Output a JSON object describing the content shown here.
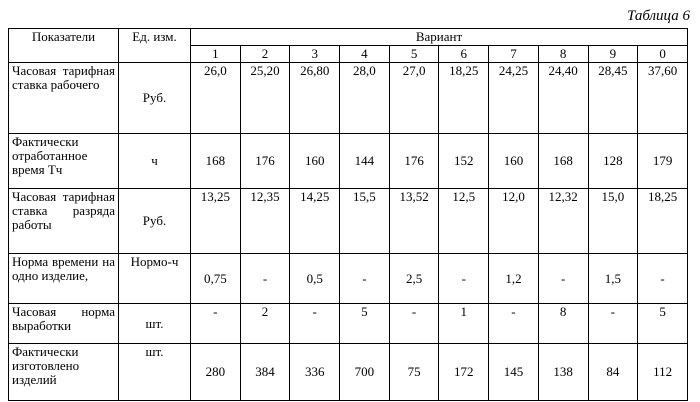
{
  "caption": "Таблица 6",
  "table": {
    "header": {
      "indicator": "Показатели",
      "unit": "Ед. изм.",
      "variant": "Вариант",
      "variants": [
        "1",
        "2",
        "3",
        "4",
        "5",
        "6",
        "7",
        "8",
        "9",
        "0"
      ]
    },
    "rows": [
      {
        "label": "Часовая тарифная ставка рабочего",
        "unit": "Руб.",
        "values": [
          "26,0",
          "25,20",
          "26,80",
          "28,0",
          "27,0",
          "18,25",
          "24,25",
          "24,40",
          "28,45",
          "37,60"
        ]
      },
      {
        "label": "Фактически отработанное время Тч",
        "unit": "ч",
        "values": [
          "168",
          "176",
          "160",
          "144",
          "176",
          "152",
          "160",
          "168",
          "128",
          "179"
        ]
      },
      {
        "label": "Часовая тарифная ставка разряда работы",
        "unit": "Руб.",
        "values": [
          "13,25",
          "12,35",
          "14,25",
          "15,5",
          "13,52",
          "12,5",
          "12,0",
          "12,32",
          "15,0",
          "18,25"
        ]
      },
      {
        "label": "Норма времени на одно изделие,",
        "unit": "Нормо-ч",
        "values": [
          "0,75",
          "-",
          "0,5",
          "-",
          "2,5",
          "-",
          "1,2",
          "-",
          "1,5",
          "-"
        ]
      },
      {
        "label": "Часовая норма выработки",
        "unit": "шт.",
        "values": [
          "-",
          "2",
          "-",
          "5",
          "-",
          "1",
          "-",
          "8",
          "-",
          "5"
        ]
      },
      {
        "label": "Фактически изготовлено изделий",
        "unit": "шт.",
        "values": [
          "280",
          "384",
          "336",
          "700",
          "75",
          "172",
          "145",
          "138",
          "84",
          "112"
        ]
      }
    ]
  }
}
